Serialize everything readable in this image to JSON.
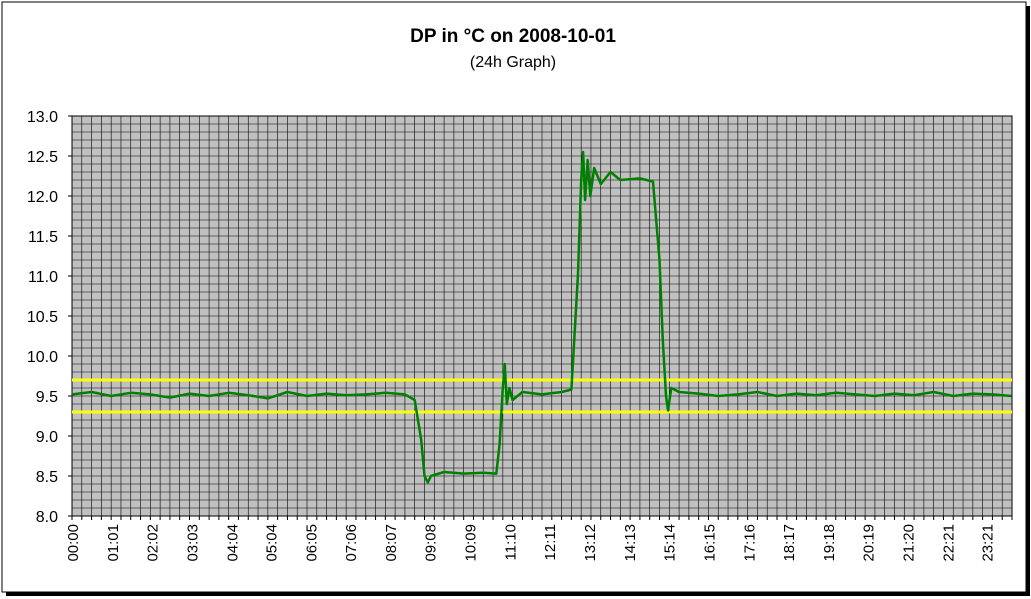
{
  "chart_data": {
    "type": "line",
    "title": "DP in °C on 2008-10-01",
    "subtitle": "(24h Graph)",
    "xlabel": "",
    "ylabel": "",
    "ylim": [
      8.0,
      13.0
    ],
    "yticks": [
      "13.0",
      "12.5",
      "12.0",
      "11.5",
      "11.0",
      "10.5",
      "10.0",
      "9.5",
      "9.0",
      "8.5",
      "8.0"
    ],
    "xticks": [
      "00:00",
      "01:01",
      "02:02",
      "03:03",
      "04:04",
      "05:04",
      "06:05",
      "07:06",
      "08:07",
      "09:08",
      "10:09",
      "11:10",
      "12:11",
      "13:12",
      "14:13",
      "15:14",
      "16:15",
      "17:16",
      "18:17",
      "19:18",
      "20:19",
      "21:20",
      "22:21",
      "23:21"
    ],
    "grid": true,
    "background": "#c0c0c0",
    "grid_color": "#000000",
    "reference_lines": [
      {
        "value": 9.7,
        "color": "#ffff00"
      },
      {
        "value": 9.3,
        "color": "#ffff00"
      }
    ],
    "series": [
      {
        "color": "#008000",
        "points": [
          [
            "00:00",
            9.52
          ],
          [
            "00:30",
            9.55
          ],
          [
            "01:00",
            9.5
          ],
          [
            "01:30",
            9.54
          ],
          [
            "02:00",
            9.52
          ],
          [
            "02:30",
            9.48
          ],
          [
            "03:00",
            9.53
          ],
          [
            "03:30",
            9.5
          ],
          [
            "04:00",
            9.54
          ],
          [
            "04:30",
            9.51
          ],
          [
            "05:00",
            9.47
          ],
          [
            "05:30",
            9.55
          ],
          [
            "06:00",
            9.5
          ],
          [
            "06:30",
            9.53
          ],
          [
            "07:00",
            9.51
          ],
          [
            "07:30",
            9.52
          ],
          [
            "08:00",
            9.54
          ],
          [
            "08:30",
            9.52
          ],
          [
            "08:45",
            9.45
          ],
          [
            "08:55",
            8.95
          ],
          [
            "09:00",
            8.5
          ],
          [
            "09:05",
            8.42
          ],
          [
            "09:10",
            8.5
          ],
          [
            "09:30",
            8.55
          ],
          [
            "10:00",
            8.53
          ],
          [
            "10:30",
            8.54
          ],
          [
            "10:50",
            8.53
          ],
          [
            "10:55",
            8.9
          ],
          [
            "11:00",
            9.6
          ],
          [
            "11:03",
            9.9
          ],
          [
            "11:06",
            9.4
          ],
          [
            "11:10",
            9.6
          ],
          [
            "11:15",
            9.45
          ],
          [
            "11:30",
            9.55
          ],
          [
            "12:00",
            9.52
          ],
          [
            "12:30",
            9.55
          ],
          [
            "12:45",
            9.58
          ],
          [
            "12:55",
            11.0
          ],
          [
            "13:00",
            12.2
          ],
          [
            "13:03",
            12.55
          ],
          [
            "13:06",
            11.95
          ],
          [
            "13:10",
            12.45
          ],
          [
            "13:14",
            12.0
          ],
          [
            "13:20",
            12.35
          ],
          [
            "13:30",
            12.15
          ],
          [
            "13:45",
            12.3
          ],
          [
            "14:00",
            12.2
          ],
          [
            "14:30",
            12.22
          ],
          [
            "14:50",
            12.18
          ],
          [
            "15:00",
            11.2
          ],
          [
            "15:05",
            10.2
          ],
          [
            "15:10",
            9.5
          ],
          [
            "15:13",
            9.32
          ],
          [
            "15:18",
            9.6
          ],
          [
            "15:30",
            9.55
          ],
          [
            "16:00",
            9.53
          ],
          [
            "16:30",
            9.5
          ],
          [
            "17:00",
            9.52
          ],
          [
            "17:30",
            9.55
          ],
          [
            "18:00",
            9.5
          ],
          [
            "18:30",
            9.53
          ],
          [
            "19:00",
            9.51
          ],
          [
            "19:30",
            9.54
          ],
          [
            "20:00",
            9.52
          ],
          [
            "20:30",
            9.5
          ],
          [
            "21:00",
            9.53
          ],
          [
            "21:30",
            9.51
          ],
          [
            "22:00",
            9.55
          ],
          [
            "22:30",
            9.5
          ],
          [
            "23:00",
            9.53
          ],
          [
            "23:30",
            9.52
          ],
          [
            "23:59",
            9.5
          ]
        ]
      }
    ]
  }
}
